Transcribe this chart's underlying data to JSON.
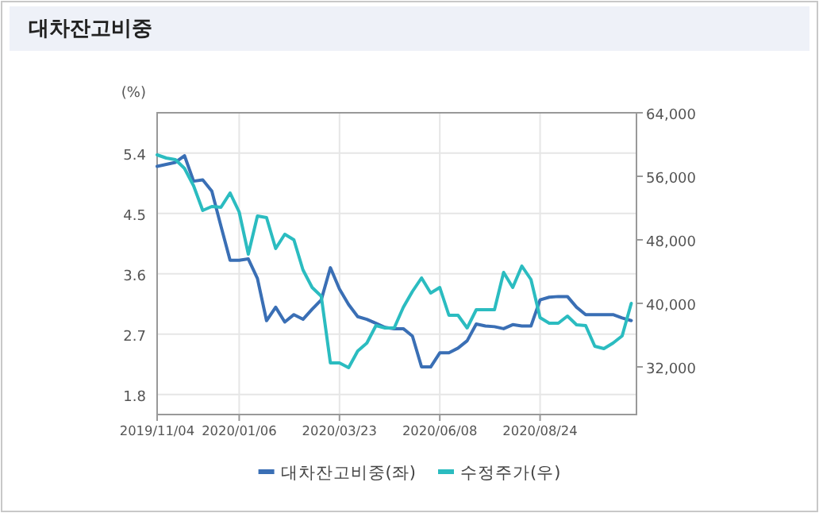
{
  "chart_data": {
    "type": "line",
    "title": "대차잔고비중",
    "ylabel": "(%)",
    "x": [
      "2019-11-04",
      "2019-11-11",
      "2019-11-18",
      "2019-11-25",
      "2019-12-02",
      "2019-12-09",
      "2019-12-16",
      "2019-12-23",
      "2019-12-30",
      "2020-01-06",
      "2020-01-13",
      "2020-01-20",
      "2020-01-27",
      "2020-02-03",
      "2020-02-10",
      "2020-02-17",
      "2020-02-24",
      "2020-03-02",
      "2020-03-09",
      "2020-03-16",
      "2020-03-23",
      "2020-03-30",
      "2020-04-06",
      "2020-04-13",
      "2020-04-20",
      "2020-04-27",
      "2020-05-04",
      "2020-05-11",
      "2020-05-18",
      "2020-05-25",
      "2020-06-01",
      "2020-06-08",
      "2020-06-15",
      "2020-06-22",
      "2020-06-29",
      "2020-07-06",
      "2020-07-13",
      "2020-07-20",
      "2020-07-27",
      "2020-08-03",
      "2020-08-10",
      "2020-08-17",
      "2020-08-24",
      "2020-08-31",
      "2020-09-07",
      "2020-09-14",
      "2020-09-21",
      "2020-09-28",
      "2020-10-05",
      "2020-10-12",
      "2020-10-19",
      "2020-10-26",
      "2020-11-02"
    ],
    "series": [
      {
        "name": "대차잔고비중(좌)",
        "color": "#3a6fb5",
        "values": [
          5.2,
          5.23,
          5.26,
          5.36,
          4.98,
          5.0,
          4.83,
          4.31,
          3.8,
          3.8,
          3.82,
          3.53,
          2.9,
          3.1,
          2.88,
          2.99,
          2.92,
          3.07,
          3.21,
          3.69,
          3.37,
          3.14,
          2.96,
          2.92,
          2.86,
          2.8,
          2.78,
          2.78,
          2.67,
          2.21,
          2.21,
          2.42,
          2.42,
          2.49,
          2.6,
          2.85,
          2.82,
          2.81,
          2.78,
          2.84,
          2.82,
          2.82,
          3.21,
          3.25,
          3.26,
          3.26,
          3.1,
          2.99,
          2.99,
          2.99,
          2.99,
          2.94,
          2.9
        ]
      },
      {
        "name": "수정주가(우)",
        "color": "#2bbcc0",
        "axis": "y2",
        "values": [
          58700,
          58300,
          58100,
          57000,
          54800,
          51700,
          52200,
          52100,
          53900,
          51500,
          46200,
          51000,
          50800,
          46900,
          48700,
          48000,
          44200,
          42000,
          40900,
          32500,
          32500,
          31900,
          34000,
          35000,
          37200,
          36900,
          36900,
          39500,
          41500,
          43200,
          41300,
          42000,
          38500,
          38500,
          36900,
          39200,
          39200,
          39200,
          43900,
          42000,
          44700,
          43000,
          38200,
          37500,
          37500,
          38400,
          37300,
          37200,
          34600,
          34300,
          35000,
          35900,
          40000
        ]
      }
    ],
    "xlim": [
      "2019-11-04",
      "2020-11-06"
    ],
    "xticks": [
      {
        "value": "2019-11-04",
        "label": "2019/11/04"
      },
      {
        "value": "2020-01-06",
        "label": "2020/01/06"
      },
      {
        "value": "2020-03-23",
        "label": "2020/03/23"
      },
      {
        "value": "2020-06-08",
        "label": "2020/06/08"
      },
      {
        "value": "2020-08-24",
        "label": "2020/08/24"
      }
    ],
    "ylim": [
      1.5,
      6.0
    ],
    "yticks": [
      1.8,
      2.7,
      3.6,
      4.5,
      5.4
    ],
    "y2lim": [
      26000,
      64000
    ],
    "y2ticks": [
      {
        "value": 32000,
        "label": "32,000"
      },
      {
        "value": 40000,
        "label": "40,000"
      },
      {
        "value": 48000,
        "label": "48,000"
      },
      {
        "value": 56000,
        "label": "56,000"
      },
      {
        "value": 64000,
        "label": "64,000"
      }
    ],
    "grid": true,
    "legend": "bottom"
  }
}
